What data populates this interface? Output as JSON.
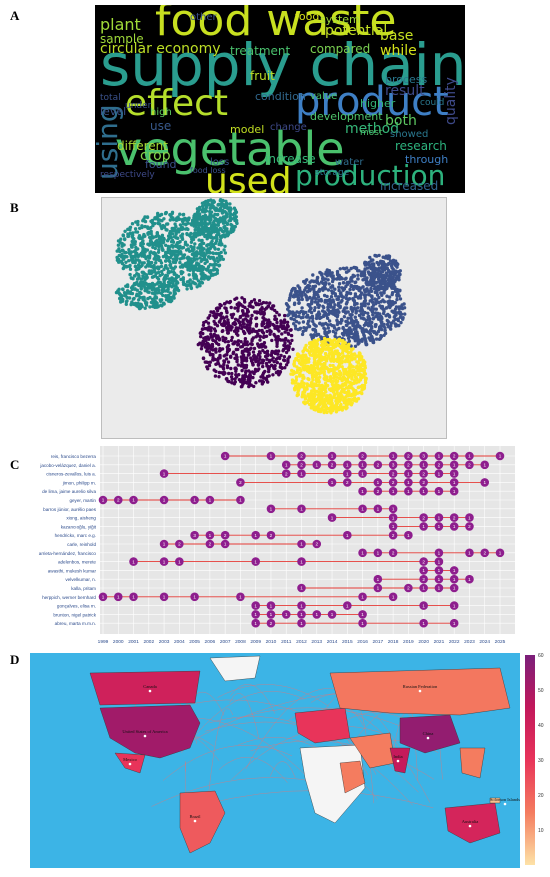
{
  "panels": {
    "a": "A",
    "b": "B",
    "c": "C",
    "d": "D"
  },
  "wordcloud": {
    "words": [
      {
        "text": "food waste",
        "color": "#c8e020",
        "size": 44
      },
      {
        "text": "supply chain",
        "color": "#2a9d8f",
        "size": 58
      },
      {
        "text": "effect",
        "color": "#b5de2b",
        "size": 36
      },
      {
        "text": "product",
        "color": "#3e7fc5",
        "size": 40
      },
      {
        "text": "vegetable",
        "color": "#4ac16d",
        "size": 46
      },
      {
        "text": "used",
        "color": "#d2e21b",
        "size": 36
      },
      {
        "text": "production",
        "color": "#2db27d",
        "size": 28
      },
      {
        "text": "using",
        "color": "#2f6e8e",
        "size": 28
      },
      {
        "text": "plant",
        "color": "#a0da39",
        "size": 16
      },
      {
        "text": "circular economy",
        "color": "#bddf26",
        "size": 14
      },
      {
        "text": "sample",
        "color": "#9fda3a",
        "size": 12
      },
      {
        "text": "potential",
        "color": "#c2df23",
        "size": 14
      },
      {
        "text": "base",
        "color": "#c5e021",
        "size": 14
      },
      {
        "text": "while",
        "color": "#d4e21a",
        "size": 14
      },
      {
        "text": "compared",
        "color": "#7ad151",
        "size": 12
      },
      {
        "text": "treatment",
        "color": "#4ac16d",
        "size": 12
      },
      {
        "text": "system",
        "color": "#9dd93b",
        "size": 11
      },
      {
        "text": "other",
        "color": "#3b528b",
        "size": 10
      },
      {
        "text": "food",
        "color": "#d8e219",
        "size": 11
      },
      {
        "text": "fruit",
        "color": "#bddf26",
        "size": 12
      },
      {
        "text": "level",
        "color": "#3a548c",
        "size": 11
      },
      {
        "text": "high",
        "color": "#5ec962",
        "size": 10
      },
      {
        "text": "use",
        "color": "#38598c",
        "size": 12
      },
      {
        "text": "model",
        "color": "#c2df23",
        "size": 11
      },
      {
        "text": "different",
        "color": "#a8db34",
        "size": 12
      },
      {
        "text": "crop",
        "color": "#84d44b",
        "size": 14
      },
      {
        "text": "found",
        "color": "#3b528b",
        "size": 11
      },
      {
        "text": "loss",
        "color": "#38598c",
        "size": 10
      },
      {
        "text": "increase",
        "color": "#35b779",
        "size": 12
      },
      {
        "text": "condition",
        "color": "#31688e",
        "size": 11
      },
      {
        "text": "development",
        "color": "#4ec36b",
        "size": 11
      },
      {
        "text": "higher",
        "color": "#35b779",
        "size": 11
      },
      {
        "text": "method",
        "color": "#35b779",
        "size": 14
      },
      {
        "text": "both",
        "color": "#5ec962",
        "size": 14
      },
      {
        "text": "result",
        "color": "#3e4a89",
        "size": 14
      },
      {
        "text": "process",
        "color": "#2a788e",
        "size": 11
      },
      {
        "text": "research",
        "color": "#2db27d",
        "size": 12
      },
      {
        "text": "through",
        "color": "#3e7fc5",
        "size": 11
      },
      {
        "text": "showed",
        "color": "#2a788e",
        "size": 10
      },
      {
        "text": "quality",
        "color": "#3e4a89",
        "size": 14
      },
      {
        "text": "value",
        "color": "#4ac16d",
        "size": 10
      },
      {
        "text": "water",
        "color": "#2f6e8e",
        "size": 10
      },
      {
        "text": "increased",
        "color": "#32648e",
        "size": 12
      },
      {
        "text": "respectively",
        "color": "#3e4a89",
        "size": 9
      },
      {
        "text": "food loss",
        "color": "#3b528b",
        "size": 8
      },
      {
        "text": "storage",
        "color": "#2a788e",
        "size": 9
      },
      {
        "text": "most",
        "color": "#4ec36b",
        "size": 9
      },
      {
        "text": "could",
        "color": "#2a788e",
        "size": 9
      },
      {
        "text": "change",
        "color": "#3e4a89",
        "size": 10
      },
      {
        "text": "total",
        "color": "#3b528b",
        "size": 9
      },
      {
        "text": "under",
        "color": "#3b528b",
        "size": 9
      }
    ]
  },
  "clusters": {
    "colors": [
      "#21908c",
      "#3b528b",
      "#440154",
      "#fde725"
    ]
  },
  "timeline": {
    "authors": [
      "reis, francisco bezerra",
      "jacobo-velázquez, daniel a.",
      "cisneros-zevallos, luis a.",
      "jimon, philipp m.",
      "de lima, jaime aurelio silva",
      "geyer, martin",
      "barros júnior, aurélio paes",
      "xiong, aisheng",
      "kazancıoğlu, yiğit",
      "hendrickx, marc e.g.",
      "carle, reinhold",
      "arrieta-hernández, francisco",
      "adelenbos, merete",
      "awasthi, mukesh kumar",
      "velvelkumar, n.",
      "kalla, pritam",
      "herppich, werner bernhard",
      "gonçalves, elisa m.",
      "brunton, nigel patrick",
      "abreu, marta m.m.n."
    ],
    "years": [
      "1999",
      "2000",
      "2001",
      "2002",
      "2003",
      "2004",
      "2005",
      "2006",
      "2007",
      "2008",
      "2009",
      "2010",
      "2011",
      "2012",
      "2013",
      "2014",
      "2015",
      "2016",
      "2017",
      "2018",
      "2019",
      "2020",
      "2021",
      "2022",
      "2023",
      "2024",
      "2025"
    ],
    "rows": [
      {
        "span": [
          "2007",
          "2025"
        ],
        "points": [
          [
            "2007",
            "1"
          ],
          [
            "2010",
            "1"
          ],
          [
            "2012",
            "2"
          ],
          [
            "2014",
            "1"
          ],
          [
            "2016",
            "2"
          ],
          [
            "2018",
            "1"
          ],
          [
            "2019",
            "2"
          ],
          [
            "2020",
            "3"
          ],
          [
            "2021",
            "1"
          ],
          [
            "2022",
            "2"
          ],
          [
            "2023",
            "1"
          ],
          [
            "2025",
            "1"
          ]
        ]
      },
      {
        "span": [
          "2011",
          "2024"
        ],
        "points": [
          [
            "2011",
            "1"
          ],
          [
            "2012",
            "2"
          ],
          [
            "2013",
            "1"
          ],
          [
            "2014",
            "2"
          ],
          [
            "2015",
            "1"
          ],
          [
            "2016",
            "1"
          ],
          [
            "2017",
            "2"
          ],
          [
            "2018",
            "3"
          ],
          [
            "2019",
            "2"
          ],
          [
            "2020",
            "1"
          ],
          [
            "2021",
            "2"
          ],
          [
            "2022",
            "1"
          ],
          [
            "2023",
            "2"
          ],
          [
            "2024",
            "1"
          ]
        ]
      },
      {
        "span": [
          "2003",
          "2022"
        ],
        "points": [
          [
            "2003",
            "1"
          ],
          [
            "2011",
            "2"
          ],
          [
            "2012",
            "1"
          ],
          [
            "2015",
            "1"
          ],
          [
            "2016",
            "1"
          ],
          [
            "2018",
            "2"
          ],
          [
            "2019",
            "1"
          ],
          [
            "2020",
            "2"
          ],
          [
            "2021",
            "1"
          ],
          [
            "2022",
            "1"
          ]
        ]
      },
      {
        "span": [
          "2008",
          "2024"
        ],
        "points": [
          [
            "2008",
            "2"
          ],
          [
            "2014",
            "1"
          ],
          [
            "2015",
            "2"
          ],
          [
            "2017",
            "1"
          ],
          [
            "2018",
            "2"
          ],
          [
            "2019",
            "1"
          ],
          [
            "2020",
            "2"
          ],
          [
            "2022",
            "1"
          ],
          [
            "2024",
            "1"
          ]
        ]
      },
      {
        "span": [
          "2016",
          "2022"
        ],
        "points": [
          [
            "2016",
            "1"
          ],
          [
            "2017",
            "2"
          ],
          [
            "2018",
            "1"
          ],
          [
            "2019",
            "1"
          ],
          [
            "2020",
            "1"
          ],
          [
            "2021",
            "1"
          ],
          [
            "2022",
            "1"
          ]
        ]
      },
      {
        "span": [
          "1999",
          "2008"
        ],
        "points": [
          [
            "1999",
            "1"
          ],
          [
            "2000",
            "2"
          ],
          [
            "2001",
            "1"
          ],
          [
            "2003",
            "1"
          ],
          [
            "2005",
            "1"
          ],
          [
            "2006",
            "1"
          ],
          [
            "2008",
            "1"
          ]
        ]
      },
      {
        "span": [
          "2010",
          "2018"
        ],
        "points": [
          [
            "2010",
            "1"
          ],
          [
            "2012",
            "1"
          ],
          [
            "2016",
            "1"
          ],
          [
            "2017",
            "1"
          ],
          [
            "2018",
            "1"
          ]
        ]
      },
      {
        "span": [
          "2014",
          "2023"
        ],
        "points": [
          [
            "2014",
            "1"
          ],
          [
            "2018",
            "1"
          ],
          [
            "2020",
            "2"
          ],
          [
            "2021",
            "1"
          ],
          [
            "2022",
            "2"
          ],
          [
            "2023",
            "1"
          ]
        ]
      },
      {
        "span": [
          "2018",
          "2023"
        ],
        "points": [
          [
            "2018",
            "1"
          ],
          [
            "2020",
            "1"
          ],
          [
            "2021",
            "1"
          ],
          [
            "2022",
            "1"
          ],
          [
            "2023",
            "2"
          ]
        ]
      },
      {
        "span": [
          "2005",
          "2019"
        ],
        "points": [
          [
            "2005",
            "3"
          ],
          [
            "2006",
            "1"
          ],
          [
            "2007",
            "2"
          ],
          [
            "2009",
            "1"
          ],
          [
            "2010",
            "2"
          ],
          [
            "2015",
            "1"
          ],
          [
            "2018",
            "2"
          ],
          [
            "2019",
            "1"
          ]
        ]
      },
      {
        "span": [
          "2003",
          "2013"
        ],
        "points": [
          [
            "2003",
            "1"
          ],
          [
            "2004",
            "2"
          ],
          [
            "2006",
            "2"
          ],
          [
            "2007",
            "1"
          ],
          [
            "2012",
            "1"
          ],
          [
            "2013",
            "2"
          ]
        ]
      },
      {
        "span": [
          "2016",
          "2025"
        ],
        "points": [
          [
            "2016",
            "1"
          ],
          [
            "2017",
            "1"
          ],
          [
            "2018",
            "2"
          ],
          [
            "2021",
            "1"
          ],
          [
            "2023",
            "1"
          ],
          [
            "2024",
            "2"
          ],
          [
            "2025",
            "1"
          ]
        ]
      },
      {
        "span": [
          "2001",
          "2021"
        ],
        "points": [
          [
            "2001",
            "1"
          ],
          [
            "2003",
            "1"
          ],
          [
            "2004",
            "1"
          ],
          [
            "2009",
            "1"
          ],
          [
            "2012",
            "1"
          ],
          [
            "2020",
            "2"
          ],
          [
            "2021",
            "1"
          ]
        ]
      },
      {
        "span": [
          "2020",
          "2022"
        ],
        "points": [
          [
            "2020",
            "1"
          ],
          [
            "2021",
            "1"
          ],
          [
            "2022",
            "1"
          ]
        ]
      },
      {
        "span": [
          "2017",
          "2023"
        ],
        "points": [
          [
            "2017",
            "1"
          ],
          [
            "2020",
            "2"
          ],
          [
            "2021",
            "1"
          ],
          [
            "2022",
            "1"
          ],
          [
            "2023",
            "1"
          ]
        ]
      },
      {
        "span": [
          "2012",
          "2022"
        ],
        "points": [
          [
            "2012",
            "1"
          ],
          [
            "2017",
            "1"
          ],
          [
            "2019",
            "2"
          ],
          [
            "2020",
            "1"
          ],
          [
            "2021",
            "1"
          ],
          [
            "2022",
            "1"
          ]
        ]
      },
      {
        "span": [
          "1999",
          "2018"
        ],
        "points": [
          [
            "1999",
            "1"
          ],
          [
            "2000",
            "1"
          ],
          [
            "2001",
            "1"
          ],
          [
            "2003",
            "1"
          ],
          [
            "2005",
            "1"
          ],
          [
            "2008",
            "1"
          ],
          [
            "2016",
            "1"
          ],
          [
            "2018",
            "1"
          ]
        ]
      },
      {
        "span": [
          "2009",
          "2022"
        ],
        "points": [
          [
            "2009",
            "1"
          ],
          [
            "2010",
            "1"
          ],
          [
            "2012",
            "1"
          ],
          [
            "2015",
            "1"
          ],
          [
            "2020",
            "1"
          ],
          [
            "2022",
            "1"
          ]
        ]
      },
      {
        "span": [
          "2009",
          "2016"
        ],
        "points": [
          [
            "2009",
            "1"
          ],
          [
            "2010",
            "1"
          ],
          [
            "2011",
            "1"
          ],
          [
            "2012",
            "1"
          ],
          [
            "2013",
            "1"
          ],
          [
            "2014",
            "1"
          ],
          [
            "2016",
            "1"
          ]
        ]
      },
      {
        "span": [
          "2009",
          "2022"
        ],
        "points": [
          [
            "2009",
            "1"
          ],
          [
            "2010",
            "2"
          ],
          [
            "2012",
            "1"
          ],
          [
            "2016",
            "1"
          ],
          [
            "2020",
            "1"
          ],
          [
            "2022",
            "1"
          ]
        ]
      }
    ]
  },
  "map": {
    "ocean_color": "#3cb4e6",
    "colorbar_ticks": [
      "60",
      "50",
      "40",
      "30",
      "20",
      "10"
    ],
    "colorbar_max": 60,
    "colorbar_min": 0,
    "countries": [
      {
        "label": "United States of America",
        "value": 52
      },
      {
        "label": "Brazil",
        "value": 22
      },
      {
        "label": "Russian Federation",
        "value": 16
      },
      {
        "label": "China",
        "value": 55
      },
      {
        "label": "India",
        "value": 44
      },
      {
        "label": "Australia",
        "value": 38
      },
      {
        "label": "Canada",
        "value": 40
      },
      {
        "label": "Mexico",
        "value": 30
      },
      {
        "label": "Solomon Islands",
        "value": 5
      }
    ]
  }
}
